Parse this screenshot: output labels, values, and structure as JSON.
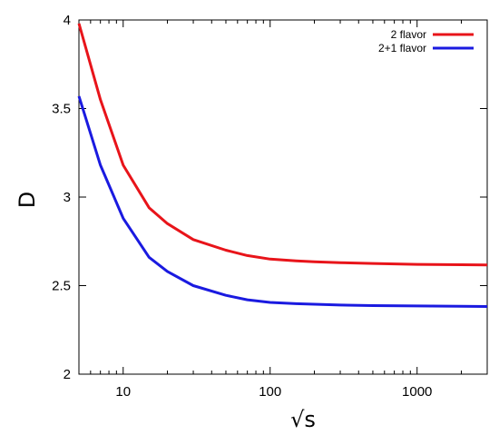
{
  "chart_data": {
    "type": "line",
    "x_scale": "log",
    "xlabel": "√s",
    "ylabel": "D",
    "xlim": [
      5,
      3000
    ],
    "ylim": [
      2,
      4
    ],
    "x_ticks": [
      10,
      100,
      1000
    ],
    "x_tick_labels": [
      "10",
      "100",
      "1000"
    ],
    "y_ticks": [
      2,
      2.5,
      3,
      3.5,
      4
    ],
    "y_tick_labels": [
      "2",
      "2.5",
      "3",
      "3.5",
      "4"
    ],
    "grid": false,
    "legend_position": "top-right",
    "series": [
      {
        "name": "2 flavor",
        "color": "#e8141a",
        "x": [
          5,
          7,
          10,
          15,
          20,
          30,
          50,
          70,
          100,
          150,
          200,
          300,
          500,
          1000,
          2000,
          3000
        ],
        "y": [
          3.98,
          3.55,
          3.18,
          2.94,
          2.85,
          2.76,
          2.7,
          2.67,
          2.65,
          2.64,
          2.635,
          2.63,
          2.625,
          2.62,
          2.618,
          2.617
        ]
      },
      {
        "name": "2+1 flavor",
        "color": "#1a1ae0",
        "x": [
          5,
          7,
          10,
          15,
          20,
          30,
          50,
          70,
          100,
          150,
          200,
          300,
          500,
          1000,
          2000,
          3000
        ],
        "y": [
          3.57,
          3.18,
          2.88,
          2.66,
          2.58,
          2.5,
          2.445,
          2.42,
          2.405,
          2.398,
          2.395,
          2.39,
          2.387,
          2.385,
          2.383,
          2.382
        ]
      }
    ]
  }
}
